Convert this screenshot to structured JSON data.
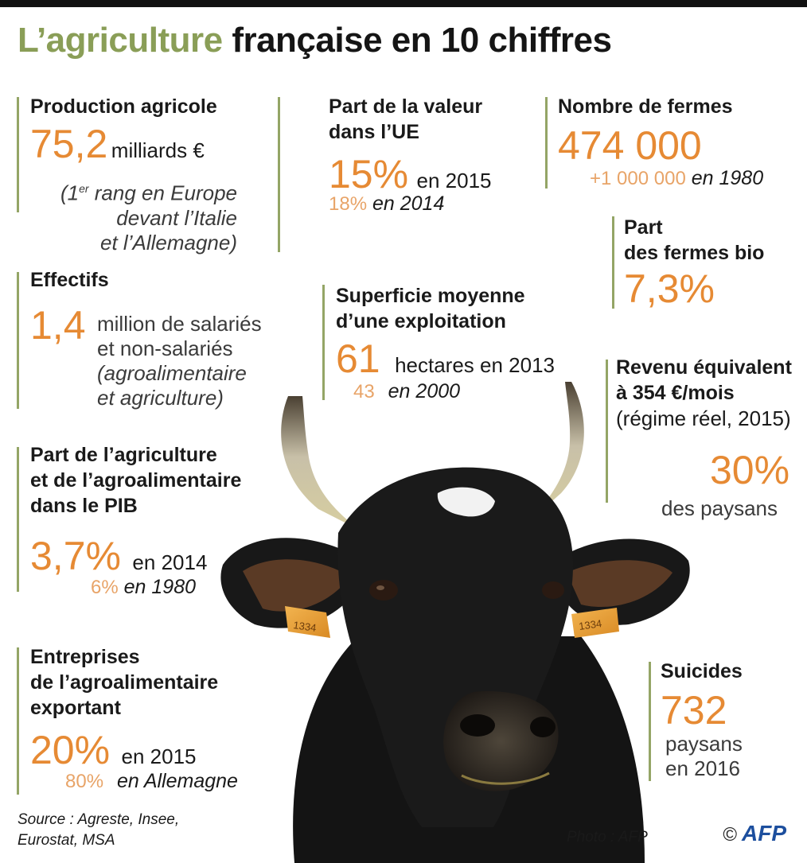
{
  "title": {
    "part1": "L’agriculture",
    "part2": "française en 10 chiffres"
  },
  "production": {
    "label": "Production agricole",
    "value": "75,2",
    "unit": "milliards €",
    "note1_pre": "(1",
    "note1_sup": "er",
    "note1_post": " rang en Europe",
    "note2": "devant l’Italie",
    "note3": "et l’Allemagne)"
  },
  "ue_share": {
    "label1": "Part de la valeur",
    "label2": "dans l’UE",
    "value": "15%",
    "year": "en 2015",
    "prev_value": "18%",
    "prev_year": "en 2014"
  },
  "farms": {
    "label": "Nombre de fermes",
    "value": "474 000",
    "prev_value": "+1 000 000",
    "prev_year": "en 1980"
  },
  "bio": {
    "label1": "Part",
    "label2": "des fermes bio",
    "value": "7,3%"
  },
  "workforce": {
    "label": "Effectifs",
    "value": "1,4",
    "line1": "million de salariés",
    "line2": "et non-salariés",
    "line3": "(agroalimentaire",
    "line4": "et agriculture)"
  },
  "area": {
    "label1": "Superficie moyenne",
    "label2": "d’une exploitation",
    "value": "61",
    "unit": "hectares en 2013",
    "prev_value": "43",
    "prev_year": "en 2000"
  },
  "income": {
    "label1": "Revenu équivalent",
    "label2": "à 354 €/mois",
    "label3": "(régime réel, 2015)",
    "value": "30%",
    "caption": "des paysans"
  },
  "gdp": {
    "label1": "Part de l’agriculture",
    "label2": "et de l’agroalimentaire",
    "label3": "dans le PIB",
    "value": "3,7%",
    "year": "en 2014",
    "prev_value": "6%",
    "prev_year": "en 1980"
  },
  "export": {
    "label1": "Entreprises",
    "label2": "de l’agroalimentaire",
    "label3": "exportant",
    "value": "20%",
    "year": "en 2015",
    "prev_value": "80%",
    "prev_year": "en Allemagne"
  },
  "suicides": {
    "label": "Suicides",
    "value": "732",
    "line1": "paysans",
    "line2": "en 2016"
  },
  "footer": {
    "source1": "Source : Agreste, Insee,",
    "source2": "Eurostat, MSA",
    "photo": "Photo : AFP",
    "copyright": "©",
    "brand": "AFP"
  },
  "colors": {
    "accent": "#e68a34",
    "green": "#8a9e57",
    "bar": "#94a566",
    "brand": "#1d4f9e"
  },
  "ear_tag_text": "1334"
}
